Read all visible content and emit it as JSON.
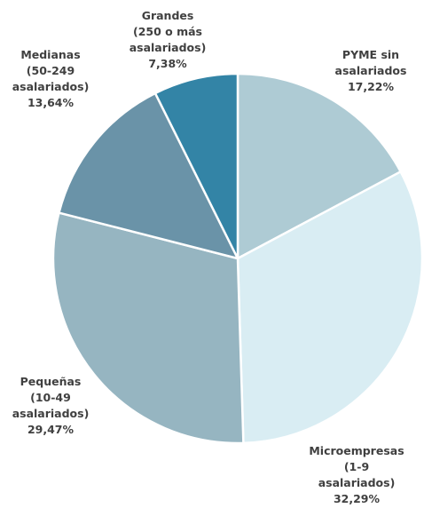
{
  "chart_data": {
    "type": "pie",
    "title": "",
    "slices": [
      {
        "label": "PYME sin asalariados",
        "label_lines": [
          "PYME sin",
          "asalariados"
        ],
        "value": 17.22,
        "value_text": "17,22%",
        "color": "#aecbd4"
      },
      {
        "label": "Microempresas (1-9 asalariados)",
        "label_lines": [
          "Microempresas",
          "(1-9",
          "asalariados)"
        ],
        "value": 32.29,
        "value_text": "32,29%",
        "color": "#d9edf3"
      },
      {
        "label": "Pequeñas (10-49 asalariados)",
        "label_lines": [
          "Pequeñas",
          "(10-49",
          "asalariados)"
        ],
        "value": 29.47,
        "value_text": "29,47%",
        "color": "#96b5c1"
      },
      {
        "label": "Medianas (50-249 asalariados)",
        "label_lines": [
          "Medianas",
          "(50-249",
          "asalariados)"
        ],
        "value": 13.64,
        "value_text": "13,64%",
        "color": "#6a93a8"
      },
      {
        "label": "Grandes (250 o más asalariados)",
        "label_lines": [
          "Grandes",
          "(250 o más",
          "asalariados)"
        ],
        "value": 7.38,
        "value_text": "7,38%",
        "color": "#3384a6"
      }
    ]
  }
}
